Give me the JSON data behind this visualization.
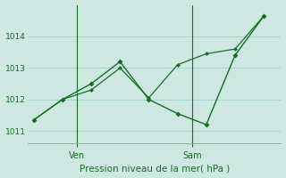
{
  "background_color": "#cce8e0",
  "grid_color": "#aad4cc",
  "line_color": "#1a6b2a",
  "title": "Pression niveau de la mer( hPa )",
  "ylim": [
    1010.6,
    1015.0
  ],
  "yticks": [
    1011,
    1012,
    1013,
    1014
  ],
  "line1_x": [
    0,
    1,
    2,
    3,
    4,
    5,
    6,
    7,
    8
  ],
  "line1_y": [
    1011.35,
    1012.0,
    1012.5,
    1013.2,
    1012.0,
    1011.55,
    1011.2,
    1013.4,
    1014.65
  ],
  "line2_x": [
    0,
    1,
    2,
    3,
    4,
    5,
    6,
    7,
    8
  ],
  "line2_y": [
    1011.35,
    1012.0,
    1012.3,
    1013.0,
    1012.05,
    1013.1,
    1013.45,
    1013.6,
    1014.65
  ],
  "x_ven": 1.5,
  "x_sam": 5.5,
  "xtick_positions": [
    1.5,
    5.5
  ],
  "xtick_labels": [
    "Ven",
    "Sam"
  ],
  "figsize": [
    3.2,
    2.0
  ],
  "dpi": 100
}
